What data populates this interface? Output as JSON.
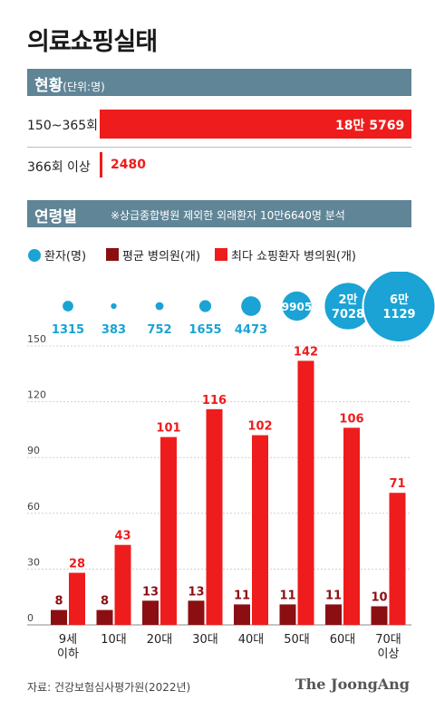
{
  "title": "의료쇼핑실태",
  "status_section": {
    "heading": "현황",
    "unit": "(단위:명)",
    "rows": [
      {
        "label": "150~365회",
        "value_label": "18만 5769",
        "value": 185769
      },
      {
        "label": "366회 이상",
        "value_label": "2480",
        "value": 2480
      }
    ]
  },
  "age_section": {
    "heading": "연령별",
    "note": "※상급종합병원 제외한 외래환자 10만6640명 분석"
  },
  "legend": [
    {
      "name": "환자(명)",
      "color": "#1aa3d4",
      "shape": "circle"
    },
    {
      "name": "평균 병의원(개)",
      "color": "#8b0f12",
      "shape": "square"
    },
    {
      "name": "최다 쇼핑환자 병의원(개)",
      "color": "#ee1c1c",
      "shape": "square"
    }
  ],
  "colors": {
    "patients": "#1aa3d4",
    "avg": "#8b0f12",
    "max": "#ee1c1c",
    "header": "#5f8596"
  },
  "chart_data": {
    "type": "bar",
    "categories": [
      "9세\n이하",
      "10대",
      "20대",
      "30대",
      "40대",
      "50대",
      "60대",
      "70대\n이상"
    ],
    "patients": {
      "name": "환자(명)",
      "values": [
        1315,
        383,
        752,
        1655,
        4473,
        9905,
        27028,
        61129
      ],
      "labels": [
        "1315",
        "383",
        "752",
        "1655",
        "4473",
        "9905",
        "2만\n7028",
        "6만\n1129"
      ]
    },
    "series": [
      {
        "name": "평균 병의원(개)",
        "values": [
          8,
          8,
          13,
          13,
          11,
          11,
          11,
          10
        ]
      },
      {
        "name": "최다 쇼핑환자 병의원(개)",
        "values": [
          28,
          43,
          101,
          116,
          102,
          142,
          106,
          71
        ]
      }
    ],
    "yticks": [
      0,
      30,
      60,
      90,
      120,
      150
    ],
    "ylim": [
      0,
      150
    ],
    "grid": true
  },
  "footer": {
    "source": "자료: 건강보험심사평가원(2022년)",
    "brand": "The JoongAng"
  }
}
